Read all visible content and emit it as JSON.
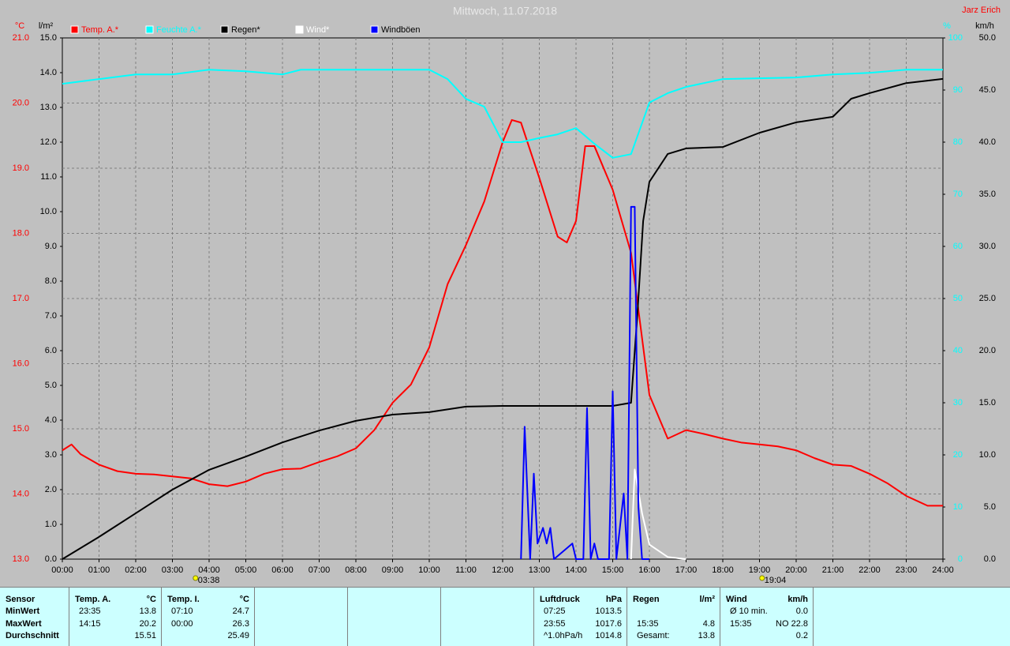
{
  "chart_data": {
    "type": "line",
    "title": "Mittwoch, 11.07.2018",
    "author": "Jarz Erich",
    "xlim": [
      0,
      24
    ],
    "xticks": [
      {
        "value": 0,
        "label": "00:00"
      },
      {
        "value": 1,
        "label": "01:00"
      },
      {
        "value": 2,
        "label": "02:00"
      },
      {
        "value": 3,
        "label": "03:00"
      },
      {
        "value": 4,
        "label": "04:00"
      },
      {
        "value": 5,
        "label": "05:00"
      },
      {
        "value": 6,
        "label": "06:00"
      },
      {
        "value": 7,
        "label": "07:00"
      },
      {
        "value": 8,
        "label": "08:00"
      },
      {
        "value": 9,
        "label": "09:00"
      },
      {
        "value": 10,
        "label": "10:00"
      },
      {
        "value": 11,
        "label": "11:00"
      },
      {
        "value": 12,
        "label": "12:00"
      },
      {
        "value": 13,
        "label": "13:00"
      },
      {
        "value": 14,
        "label": "14:00"
      },
      {
        "value": 15,
        "label": "15:00"
      },
      {
        "value": 16,
        "label": "16:00"
      },
      {
        "value": 17,
        "label": "17:00"
      },
      {
        "value": 18,
        "label": "18:00"
      },
      {
        "value": 19,
        "label": "19:00"
      },
      {
        "value": 20,
        "label": "20:00"
      },
      {
        "value": 21,
        "label": "21:00"
      },
      {
        "value": 22,
        "label": "22:00"
      },
      {
        "value": 23,
        "label": "23:00"
      },
      {
        "value": 24,
        "label": "24:00"
      }
    ],
    "grid": true,
    "axes": [
      {
        "label": "°C",
        "color": "#ff0000",
        "lim": [
          13,
          21
        ],
        "ticks": [
          {
            "value": 13,
            "label": "13.0"
          },
          {
            "value": 14,
            "label": "14.0"
          },
          {
            "value": 15,
            "label": "15.0"
          },
          {
            "value": 16,
            "label": "16.0"
          },
          {
            "value": 17,
            "label": "17.0"
          },
          {
            "value": 18,
            "label": "18.0"
          },
          {
            "value": 19,
            "label": "19.0"
          },
          {
            "value": 20,
            "label": "20.0"
          },
          {
            "value": 21,
            "label": "21.0"
          }
        ]
      },
      {
        "label": "l/m²",
        "color": "#000000",
        "lim": [
          0,
          15
        ],
        "ticks": [
          {
            "value": 0,
            "label": "0.0"
          },
          {
            "value": 1,
            "label": "1.0"
          },
          {
            "value": 2,
            "label": "2.0"
          },
          {
            "value": 3,
            "label": "3.0"
          },
          {
            "value": 4,
            "label": "4.0"
          },
          {
            "value": 5,
            "label": "5.0"
          },
          {
            "value": 6,
            "label": "6.0"
          },
          {
            "value": 7,
            "label": "7.0"
          },
          {
            "value": 8,
            "label": "8.0"
          },
          {
            "value": 9,
            "label": "9.0"
          },
          {
            "value": 10,
            "label": "10.0"
          },
          {
            "value": 11,
            "label": "11.0"
          },
          {
            "value": 12,
            "label": "12.0"
          },
          {
            "value": 13,
            "label": "13.0"
          },
          {
            "value": 14,
            "label": "14.0"
          },
          {
            "value": 15,
            "label": "15.0"
          }
        ]
      },
      {
        "label": "%",
        "color": "#00ffff",
        "lim": [
          0,
          100
        ],
        "ticks": [
          0,
          10,
          20,
          30,
          40,
          50,
          60,
          70,
          80,
          90,
          100
        ]
      },
      {
        "label": "km/h",
        "color": "#000000",
        "lim": [
          0,
          50
        ],
        "ticks": [
          {
            "value": 0,
            "label": "0.0"
          },
          {
            "value": 5,
            "label": "5.0"
          },
          {
            "value": 10,
            "label": "10.0"
          },
          {
            "value": 15,
            "label": "15.0"
          },
          {
            "value": 20,
            "label": "20.0"
          },
          {
            "value": 25,
            "label": "25.0"
          },
          {
            "value": 30,
            "label": "30.0"
          },
          {
            "value": 35,
            "label": "35.0"
          },
          {
            "value": 40,
            "label": "40.0"
          },
          {
            "value": 45,
            "label": "45.0"
          },
          {
            "value": 50,
            "label": "50.0"
          }
        ]
      }
    ],
    "series": [
      {
        "name": "Temp. A.*",
        "color": "#ff0000",
        "axis": 0,
        "x": [
          0,
          0.25,
          0.5,
          1,
          1.5,
          2,
          2.5,
          3,
          3.5,
          4,
          4.5,
          5,
          5.5,
          6,
          6.5,
          7,
          7.5,
          8,
          8.5,
          9,
          9.5,
          10,
          10.5,
          11,
          11.5,
          12,
          12.25,
          12.5,
          13,
          13.5,
          13.75,
          14,
          14.25,
          14.5,
          15,
          15.5,
          16,
          16.5,
          17,
          17.5,
          18,
          18.5,
          19,
          19.5,
          20,
          20.5,
          21,
          21.5,
          22,
          22.5,
          23,
          23.58,
          24
        ],
        "values": [
          14.67,
          14.76,
          14.61,
          14.45,
          14.35,
          14.31,
          14.3,
          14.27,
          14.24,
          14.15,
          14.12,
          14.19,
          14.31,
          14.38,
          14.39,
          14.49,
          14.58,
          14.7,
          14.98,
          15.4,
          15.68,
          16.25,
          17.22,
          17.82,
          18.49,
          19.4,
          19.74,
          19.7,
          18.85,
          17.95,
          17.86,
          18.19,
          19.34,
          19.34,
          18.67,
          17.7,
          15.52,
          14.85,
          14.98,
          14.92,
          14.85,
          14.79,
          14.76,
          14.73,
          14.67,
          14.55,
          14.45,
          14.43,
          14.31,
          14.16,
          13.97,
          13.82,
          13.82
        ]
      },
      {
        "name": "Feuchte A.*",
        "color": "#00ffff",
        "axis": 2,
        "x": [
          0,
          1,
          2,
          3,
          4,
          5,
          6,
          6.5,
          8,
          10,
          10.5,
          11,
          11.5,
          12,
          12.5,
          13,
          13.5,
          14,
          14.5,
          15,
          15.5,
          16,
          16.5,
          17,
          18,
          20,
          21,
          22,
          23,
          24
        ],
        "values": [
          91.2,
          92.1,
          93,
          93,
          93.9,
          93.6,
          93,
          93.9,
          93.9,
          93.9,
          92.1,
          88.3,
          86.8,
          80,
          80,
          80.8,
          81.5,
          82.7,
          79.7,
          77,
          77.7,
          87.6,
          89.4,
          90.6,
          92.1,
          92.4,
          93,
          93.3,
          93.9,
          93.9
        ]
      },
      {
        "name": "Regen*",
        "color": "#000000",
        "axis": 1,
        "x": [
          0,
          1,
          2,
          3,
          4,
          5,
          6,
          7,
          8,
          9,
          10,
          11,
          12,
          15,
          15.5,
          15.67,
          15.83,
          16,
          16.5,
          17,
          18,
          19,
          20,
          21,
          21.5,
          22,
          23,
          24
        ],
        "values": [
          0,
          0.64,
          1.32,
          2,
          2.57,
          2.95,
          3.36,
          3.7,
          3.98,
          4.16,
          4.23,
          4.39,
          4.41,
          4.41,
          4.5,
          7,
          9.73,
          10.86,
          11.66,
          11.82,
          11.86,
          12.27,
          12.57,
          12.73,
          13.25,
          13.41,
          13.7,
          13.82
        ]
      },
      {
        "name": "Wind*",
        "color": "#ffffff",
        "axis": 3,
        "x": [
          15.5,
          15.6,
          15.8,
          16,
          16.5,
          17
        ],
        "values": [
          0,
          8.6,
          4.4,
          1.4,
          0.2,
          0
        ]
      },
      {
        "name": "Windböen",
        "color": "#0000ff",
        "axis": 3,
        "x": [
          12.5,
          12.6,
          12.75,
          12.85,
          12.95,
          13.1,
          13.2,
          13.3,
          13.4,
          13.9,
          14,
          14.2,
          14.3,
          14.4,
          14.5,
          14.6,
          14.9,
          15,
          15.1,
          15.3,
          15.4,
          15.5,
          15.6,
          15.7,
          15.8,
          16
        ],
        "values": [
          0,
          12.7,
          0,
          8.2,
          1.5,
          3,
          1.5,
          3,
          0,
          1.5,
          0,
          0,
          14.5,
          0,
          1.5,
          0,
          0,
          16.1,
          0,
          6.3,
          0,
          33.8,
          33.8,
          5,
          0,
          0
        ]
      }
    ],
    "annotations": [
      {
        "x": 3.63,
        "label": "03:38"
      },
      {
        "x": 19.07,
        "label": "19:04"
      }
    ]
  },
  "table": {
    "columns": [
      {
        "title": "Sensor",
        "rows": [
          [
            "MinWert"
          ],
          [
            "MaxWert"
          ],
          [
            "Durchschnitt"
          ]
        ]
      },
      {
        "title": "Temp. A.",
        "unit": "°C",
        "rows": [
          [
            "23:35",
            "13.8"
          ],
          [
            "14:15",
            "20.2"
          ],
          [
            "15.51"
          ]
        ]
      },
      {
        "title": "Temp. I.",
        "unit": "°C",
        "rows": [
          [
            "07:10",
            "24.7"
          ],
          [
            "00:00",
            "26.3"
          ],
          [
            "25.49"
          ]
        ]
      },
      {
        "rows": []
      },
      {
        "rows": []
      },
      {
        "rows": []
      },
      {
        "title": "Luftdruck",
        "unit": "hPa",
        "rows": [
          [
            "07:25",
            "1013.5"
          ],
          [
            "23:55",
            "1017.6"
          ],
          [
            "^1.0hPa/h",
            "1014.8"
          ]
        ]
      },
      {
        "title": "Regen",
        "unit": "l/m²",
        "rows": [
          [],
          [
            "15:35",
            "4.8"
          ],
          [
            "Gesamt:",
            "13.8"
          ]
        ]
      },
      {
        "title": "Wind",
        "unit": "km/h",
        "rows": [
          [
            "Ø 10 min.",
            "0.0"
          ],
          [
            "15:35",
            "NO 22.8"
          ],
          [
            "0.2"
          ]
        ]
      }
    ]
  }
}
